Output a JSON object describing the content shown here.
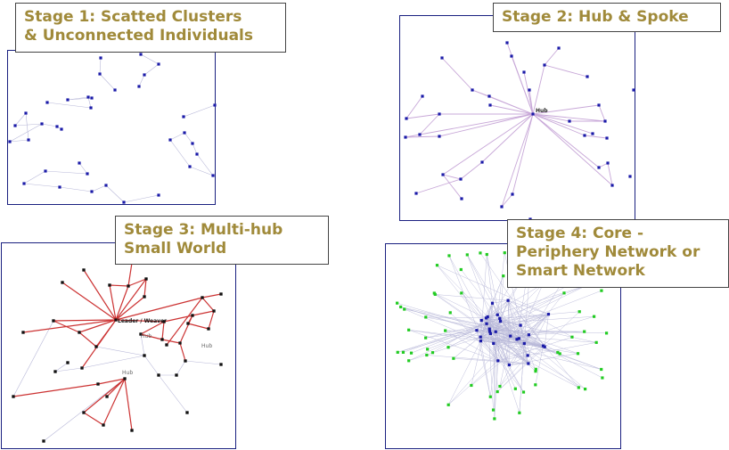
{
  "stages": [
    {
      "title_lines": [
        "Stage 1: Scatted Clusters",
        "& Unconnected Individuals"
      ]
    },
    {
      "title_lines": [
        "Stage 2: Hub & Spoke"
      ],
      "hub_labels": [
        "Hub"
      ]
    },
    {
      "title_lines": [
        "Stage 3: Multi-hub",
        "Small World"
      ],
      "hub_labels": [
        "Leader / Weaver",
        "Hub",
        "Hub",
        "Hub"
      ]
    },
    {
      "title_lines": [
        "Stage 4: Core -",
        "Periphery Network or",
        "Smart Network"
      ]
    }
  ],
  "colors": {
    "title_text": "#a08a3a",
    "panel_border": "#1a2080",
    "node_blue": "#1a1aa8",
    "node_black": "#111111",
    "node_green": "#22cc22",
    "edge_light": "#b8b8d8",
    "edge_purple": "#c8a8d8",
    "edge_red": "#cc3333"
  }
}
